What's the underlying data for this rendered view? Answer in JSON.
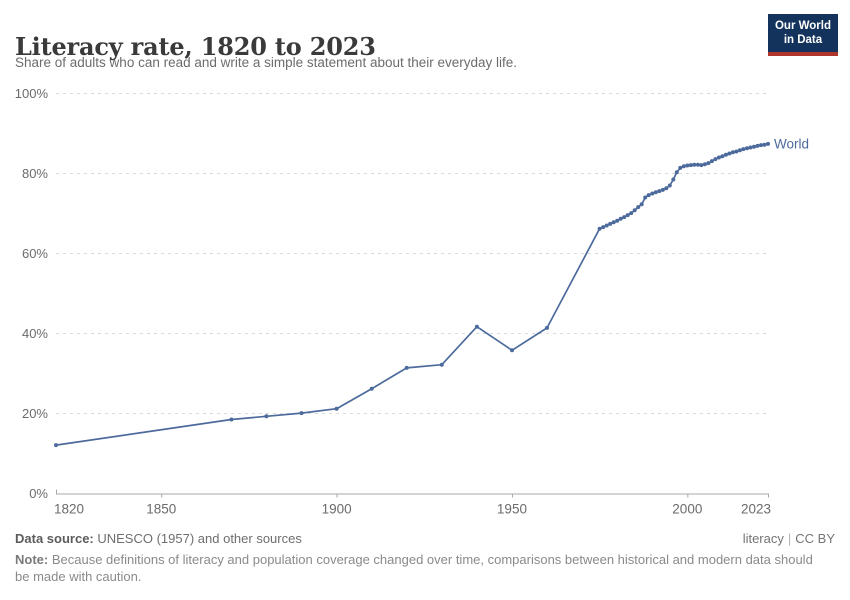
{
  "header": {
    "title": "Literacy rate, 1820 to 2023",
    "subtitle": "Share of adults who can read and write a simple statement about their everyday life.",
    "logo": {
      "line1": "Our World",
      "line2": "in Data"
    }
  },
  "colors": {
    "series_blue": "#4C6A9C",
    "gridline": "#d9d9d9",
    "axis": "#a8a8a8",
    "tick_label": "#6b6b6b",
    "logo_navy": "#14335c",
    "logo_red": "#b0352c"
  },
  "chart_data": {
    "type": "line",
    "title": "Literacy rate, 1820 to 2023",
    "subtitle": "Share of adults who can read and write a simple statement about their everyday life.",
    "xlabel": "",
    "ylabel": "",
    "xlim": [
      1820,
      2023
    ],
    "ylim": [
      0,
      100
    ],
    "grid": "horizontal-dashed",
    "legend_position": "end-of-line-label",
    "x_ticks": [
      1820,
      1850,
      1900,
      1950,
      2000,
      2023
    ],
    "x_tick_labels": [
      "1820",
      "1850",
      "1900",
      "1950",
      "2000",
      "2023"
    ],
    "y_ticks": [
      0,
      20,
      40,
      60,
      80,
      100
    ],
    "y_tick_labels": [
      "0%",
      "20%",
      "40%",
      "60%",
      "80%",
      "100%"
    ],
    "series": [
      {
        "name": "World",
        "color": "#4C6A9C",
        "points": [
          [
            1820,
            12.1
          ],
          [
            1870,
            18.5
          ],
          [
            1880,
            19.3
          ],
          [
            1890,
            20.1
          ],
          [
            1900,
            21.2
          ],
          [
            1910,
            26.2
          ],
          [
            1920,
            31.4
          ],
          [
            1930,
            32.2
          ],
          [
            1940,
            41.7
          ],
          [
            1950,
            35.8
          ],
          [
            1960,
            41.4
          ],
          [
            1975,
            66.2
          ],
          [
            1976,
            66.6
          ],
          [
            1977,
            67.0
          ],
          [
            1978,
            67.4
          ],
          [
            1979,
            67.8
          ],
          [
            1980,
            68.2
          ],
          [
            1981,
            68.7
          ],
          [
            1982,
            69.1
          ],
          [
            1983,
            69.6
          ],
          [
            1984,
            70.1
          ],
          [
            1985,
            70.8
          ],
          [
            1986,
            71.6
          ],
          [
            1987,
            72.3
          ],
          [
            1988,
            74.0
          ],
          [
            1989,
            74.6
          ],
          [
            1990,
            75.0
          ],
          [
            1991,
            75.3
          ],
          [
            1992,
            75.6
          ],
          [
            1993,
            75.9
          ],
          [
            1994,
            76.3
          ],
          [
            1995,
            77.0
          ],
          [
            1996,
            78.5
          ],
          [
            1997,
            80.3
          ],
          [
            1998,
            81.4
          ],
          [
            1999,
            81.8
          ],
          [
            2000,
            82.0
          ],
          [
            2001,
            82.1
          ],
          [
            2002,
            82.2
          ],
          [
            2003,
            82.2
          ],
          [
            2004,
            82.1
          ],
          [
            2005,
            82.3
          ],
          [
            2006,
            82.6
          ],
          [
            2007,
            83.1
          ],
          [
            2008,
            83.6
          ],
          [
            2009,
            84.0
          ],
          [
            2010,
            84.3
          ],
          [
            2011,
            84.7
          ],
          [
            2012,
            85.0
          ],
          [
            2013,
            85.3
          ],
          [
            2014,
            85.5
          ],
          [
            2015,
            85.8
          ],
          [
            2016,
            86.1
          ],
          [
            2017,
            86.3
          ],
          [
            2018,
            86.5
          ],
          [
            2019,
            86.7
          ],
          [
            2020,
            86.9
          ],
          [
            2021,
            87.1
          ],
          [
            2022,
            87.2
          ],
          [
            2023,
            87.4
          ]
        ]
      }
    ]
  },
  "footer": {
    "datasource_label": "Data source:",
    "datasource_text": " UNESCO (1957) and other sources",
    "link_text": "literacy",
    "separator": "|",
    "license": "CC BY",
    "note_label": "Note:",
    "note_text": " Because definitions of literacy and population coverage changed over time, comparisons between historical and modern data should be made with caution."
  }
}
